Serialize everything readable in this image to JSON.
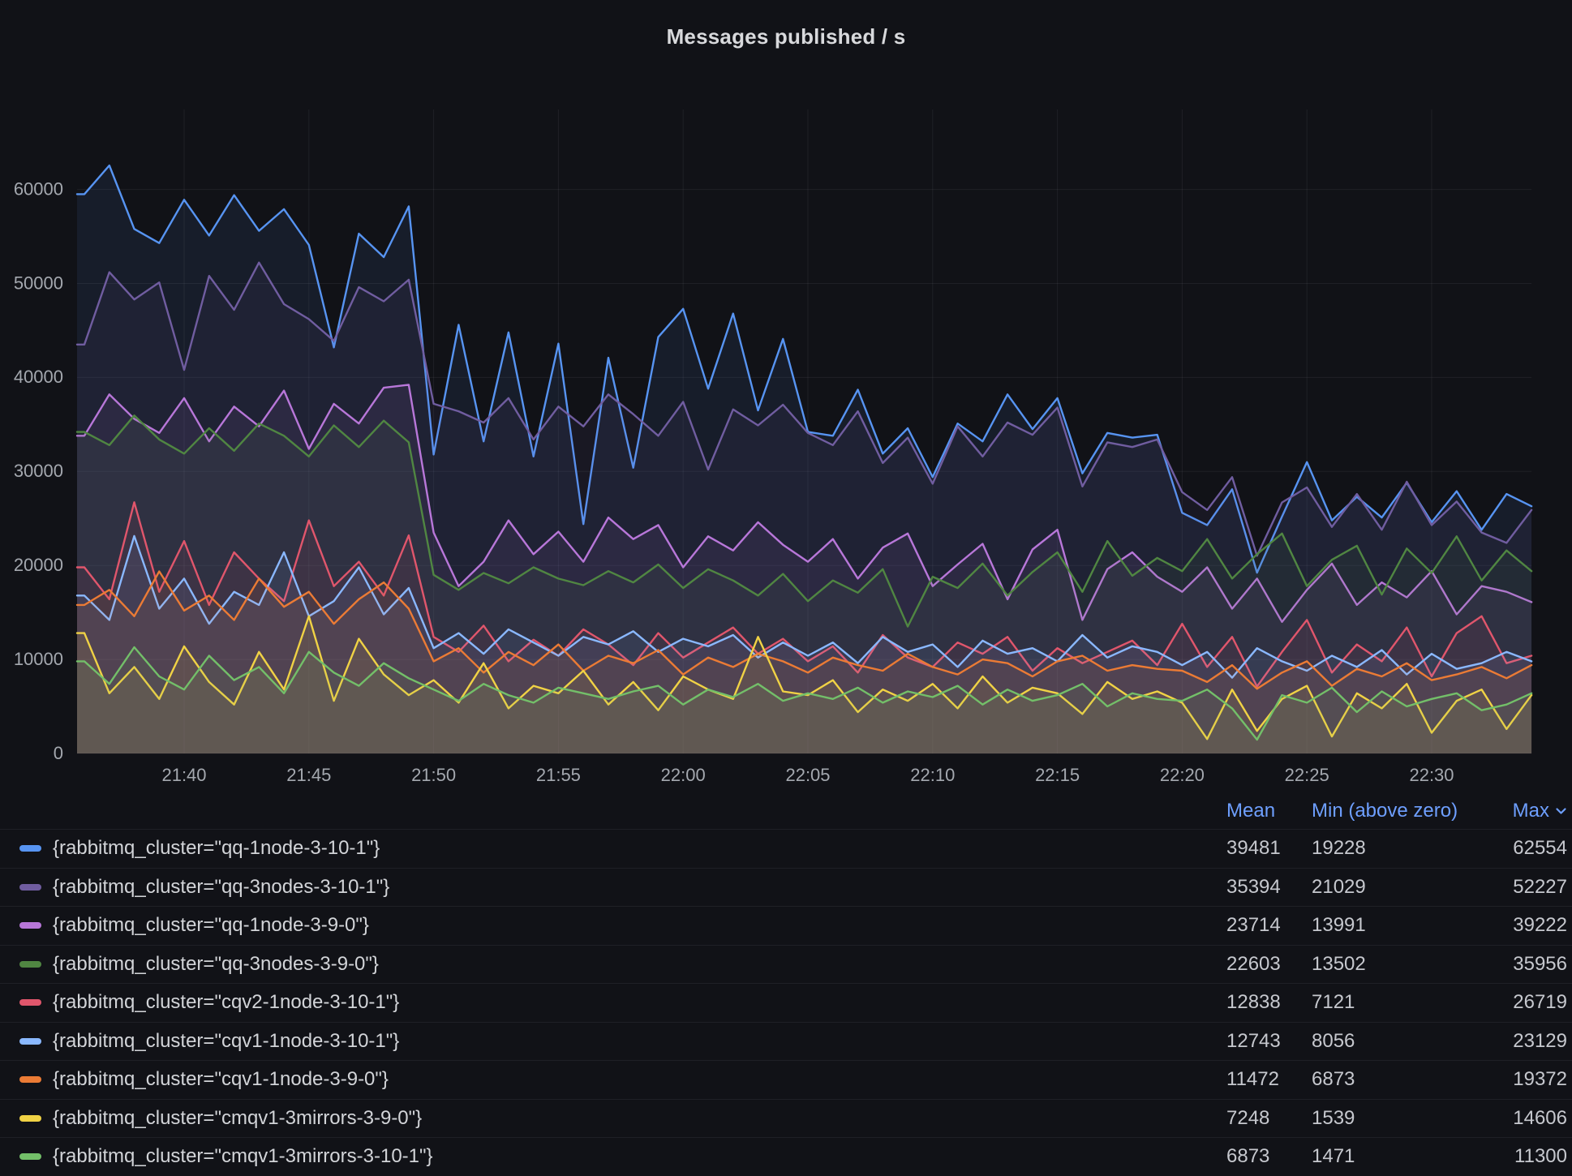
{
  "panel": {
    "title": "Messages published / s"
  },
  "colors": {
    "background": "#111217",
    "grid": "rgba(204,204,220,0.08)",
    "axis_text": "#A4A8AF",
    "header_blue": "#6E9FFF",
    "label_text": "#D2D4D8",
    "value_text": "#C6C8CE",
    "title_text": "#D8D9DC"
  },
  "legend": {
    "columns": [
      "Mean",
      "Min (above zero)",
      "Max"
    ],
    "sort_column": "Max",
    "sort_direction": "desc",
    "rows": [
      {
        "label": "{rabbitmq_cluster=\"qq-1node-3-10-1\"}",
        "color": "#5794F2",
        "mean": 39481,
        "min": 19228,
        "max": 62554
      },
      {
        "label": "{rabbitmq_cluster=\"qq-3nodes-3-10-1\"}",
        "color": "#705DA0",
        "mean": 35394,
        "min": 21029,
        "max": 52227
      },
      {
        "label": "{rabbitmq_cluster=\"qq-1node-3-9-0\"}",
        "color": "#B877D9",
        "mean": 23714,
        "min": 13991,
        "max": 39222
      },
      {
        "label": "{rabbitmq_cluster=\"qq-3nodes-3-9-0\"}",
        "color": "#508642",
        "mean": 22603,
        "min": 13502,
        "max": 35956
      },
      {
        "label": "{rabbitmq_cluster=\"cqv2-1node-3-10-1\"}",
        "color": "#E0566C",
        "mean": 12838,
        "min": 7121,
        "max": 26719
      },
      {
        "label": "{rabbitmq_cluster=\"cqv1-1node-3-10-1\"}",
        "color": "#8AB8FF",
        "mean": 12743,
        "min": 8056,
        "max": 23129
      },
      {
        "label": "{rabbitmq_cluster=\"cqv1-1node-3-9-0\"}",
        "color": "#EB7B35",
        "mean": 11472,
        "min": 6873,
        "max": 19372
      },
      {
        "label": "{rabbitmq_cluster=\"cmqv1-3mirrors-3-9-0\"}",
        "color": "#F0D245",
        "mean": 7248,
        "min": 1539,
        "max": 14606
      },
      {
        "label": "{rabbitmq_cluster=\"cmqv1-3mirrors-3-10-1\"}",
        "color": "#73BF69",
        "mean": 6873,
        "min": 1471,
        "max": 11300
      }
    ]
  },
  "chart_data": {
    "type": "line",
    "title": "Messages published / s",
    "xlabel": "",
    "ylabel": "",
    "grid": true,
    "legend_position": "bottom-table",
    "fill_opacity": 0.085,
    "line_width": 2.4,
    "ylim": [
      0,
      70000
    ],
    "y_ticks": [
      0,
      10000,
      20000,
      30000,
      40000,
      50000,
      60000
    ],
    "x_ticks": [
      "21:40",
      "21:45",
      "21:50",
      "21:55",
      "22:00",
      "22:05",
      "22:10",
      "22:15",
      "22:20",
      "22:25",
      "22:30"
    ],
    "x_tick_minutes": [
      4,
      9,
      14,
      19,
      24,
      29,
      34,
      39,
      44,
      49,
      54
    ],
    "x_times": [
      "21:36",
      "21:37",
      "21:38",
      "21:39",
      "21:40",
      "21:41",
      "21:42",
      "21:43",
      "21:44",
      "21:45",
      "21:46",
      "21:47",
      "21:48",
      "21:49",
      "21:50",
      "21:51",
      "21:52",
      "21:53",
      "21:54",
      "21:55",
      "21:56",
      "21:57",
      "21:58",
      "21:59",
      "22:00",
      "22:01",
      "22:02",
      "22:03",
      "22:04",
      "22:05",
      "22:06",
      "22:07",
      "22:08",
      "22:09",
      "22:10",
      "22:11",
      "22:12",
      "22:13",
      "22:14",
      "22:15",
      "22:16",
      "22:17",
      "22:18",
      "22:19",
      "22:20",
      "22:21",
      "22:22",
      "22:23",
      "22:24",
      "22:25",
      "22:26",
      "22:27",
      "22:28",
      "22:29",
      "22:30",
      "22:31",
      "22:32",
      "22:33",
      "22:34"
    ],
    "series": [
      {
        "name": "{rabbitmq_cluster=\"qq-1node-3-10-1\"}",
        "color": "#5794F2",
        "values": [
          59500,
          62554,
          55800,
          54300,
          58900,
          55100,
          59400,
          55600,
          57900,
          54100,
          43200,
          55300,
          52800,
          58200,
          31800,
          45600,
          33200,
          44800,
          31600,
          43600,
          24400,
          42100,
          30400,
          44300,
          47300,
          38800,
          46800,
          36500,
          44100,
          34200,
          33800,
          38700,
          31900,
          34600,
          29400,
          35100,
          33200,
          38200,
          34500,
          37800,
          29800,
          34100,
          33600,
          33900,
          25600,
          24300,
          28100,
          19228,
          25200,
          31000,
          24800,
          27300,
          25100,
          28800,
          24600,
          27900,
          23800,
          27600,
          26300
        ]
      },
      {
        "name": "{rabbitmq_cluster=\"qq-3nodes-3-10-1\"}",
        "color": "#705DA0",
        "values": [
          43500,
          51200,
          48300,
          50100,
          40800,
          50800,
          47200,
          52227,
          47800,
          46200,
          43900,
          49600,
          48100,
          50400,
          37200,
          36400,
          35200,
          37800,
          33400,
          36900,
          34800,
          38200,
          36100,
          33800,
          37400,
          30200,
          36600,
          34900,
          37100,
          34100,
          32800,
          36400,
          30900,
          33600,
          28700,
          34800,
          31600,
          35200,
          33900,
          36800,
          28400,
          33100,
          32600,
          33400,
          27800,
          25900,
          29400,
          21029,
          26700,
          28300,
          24100,
          27600,
          23800,
          28900,
          24300,
          26800,
          23500,
          22400,
          25900
        ]
      },
      {
        "name": "{rabbitmq_cluster=\"qq-1node-3-9-0\"}",
        "color": "#B877D9",
        "values": [
          33800,
          38200,
          35600,
          34100,
          37800,
          33200,
          36900,
          34800,
          38600,
          32400,
          37200,
          35100,
          38900,
          39222,
          23500,
          17800,
          20400,
          24800,
          21200,
          23600,
          20400,
          25100,
          22800,
          24300,
          19800,
          23100,
          21600,
          24600,
          22200,
          20400,
          22800,
          18600,
          21900,
          23400,
          17800,
          20100,
          22300,
          16400,
          21700,
          23800,
          14200,
          19600,
          21400,
          18800,
          17200,
          19800,
          15400,
          18600,
          13991,
          17400,
          20200,
          15800,
          18200,
          16600,
          19400,
          14800,
          17800,
          17200,
          16100
        ]
      },
      {
        "name": "{rabbitmq_cluster=\"qq-3nodes-3-9-0\"}",
        "color": "#508642",
        "values": [
          34200,
          32800,
          35956,
          33400,
          31900,
          34600,
          32200,
          35100,
          33800,
          31600,
          34900,
          32600,
          35400,
          33100,
          19000,
          17400,
          19200,
          18100,
          19800,
          18600,
          17900,
          19400,
          18200,
          20100,
          17600,
          19600,
          18400,
          16800,
          19100,
          16200,
          18400,
          17100,
          19600,
          13502,
          18800,
          17600,
          20200,
          16800,
          19300,
          21400,
          17200,
          22600,
          18900,
          20800,
          19400,
          22800,
          18600,
          21200,
          23400,
          17800,
          20600,
          22100,
          16900,
          21800,
          19200,
          23100,
          18400,
          21600,
          19400
        ]
      },
      {
        "name": "{rabbitmq_cluster=\"cqv2-1node-3-10-1\"}",
        "color": "#E0566C",
        "values": [
          19800,
          16400,
          26719,
          17200,
          22600,
          15800,
          21400,
          18600,
          16200,
          24800,
          17800,
          20400,
          16800,
          23200,
          12400,
          10800,
          13600,
          9800,
          12100,
          10400,
          13200,
          11600,
          9400,
          12800,
          10200,
          11800,
          13400,
          10600,
          12200,
          9800,
          11400,
          8600,
          12600,
          10200,
          9200,
          11800,
          10600,
          12400,
          8800,
          11200,
          9600,
          10800,
          12000,
          9400,
          13800,
          9200,
          12400,
          7121,
          10800,
          14200,
          8600,
          11600,
          9800,
          13400,
          8200,
          12800,
          14600,
          9600,
          10400
        ]
      },
      {
        "name": "{rabbitmq_cluster=\"cqv1-1node-3-10-1\"}",
        "color": "#8AB8FF",
        "values": [
          16800,
          14200,
          23129,
          15400,
          18600,
          13800,
          17200,
          15800,
          21400,
          14600,
          16200,
          19800,
          14800,
          17600,
          11200,
          12800,
          10600,
          13200,
          11800,
          10400,
          12400,
          11600,
          13000,
          10800,
          12200,
          11400,
          12600,
          10200,
          11800,
          10400,
          11800,
          9600,
          12400,
          10800,
          11600,
          9200,
          12000,
          10600,
          11200,
          9800,
          12600,
          10200,
          11400,
          10800,
          9400,
          10800,
          8056,
          11200,
          9800,
          8800,
          10400,
          9200,
          11000,
          8400,
          10600,
          9000,
          9600,
          10800,
          9800
        ]
      },
      {
        "name": "{rabbitmq_cluster=\"cqv1-1node-3-9-0\"}",
        "color": "#EB7B35",
        "values": [
          15800,
          17400,
          14600,
          19372,
          15200,
          16800,
          14200,
          18600,
          15600,
          17200,
          13800,
          16400,
          18200,
          15400,
          9800,
          11200,
          8600,
          10800,
          9400,
          11600,
          8800,
          10400,
          9600,
          11000,
          8400,
          10200,
          9200,
          10600,
          9800,
          8600,
          10200,
          9400,
          8800,
          10600,
          9200,
          8400,
          10000,
          9600,
          8200,
          9800,
          10400,
          8800,
          9400,
          9000,
          8800,
          7600,
          9400,
          6873,
          8600,
          9800,
          7200,
          9000,
          8200,
          9600,
          7800,
          8400,
          9200,
          8000,
          9400
        ]
      },
      {
        "name": "{rabbitmq_cluster=\"cmqv1-3mirrors-3-9-0\"}",
        "color": "#F0D245",
        "values": [
          12800,
          6400,
          9200,
          5800,
          11400,
          7600,
          5200,
          10800,
          6800,
          14606,
          5600,
          12200,
          8400,
          6200,
          7800,
          5400,
          9600,
          4800,
          7200,
          6400,
          8800,
          5200,
          7600,
          4600,
          8200,
          6800,
          5800,
          12400,
          6600,
          6200,
          7800,
          4400,
          6800,
          5600,
          7400,
          4800,
          8200,
          5400,
          7000,
          6400,
          4200,
          7600,
          5800,
          6600,
          5400,
          1539,
          6800,
          2400,
          5800,
          7200,
          1800,
          6400,
          4800,
          7400,
          2200,
          5600,
          6800,
          2600,
          6200
        ]
      },
      {
        "name": "{rabbitmq_cluster=\"cmqv1-3mirrors-3-10-1\"}",
        "color": "#73BF69",
        "values": [
          9800,
          7400,
          11300,
          8200,
          6800,
          10400,
          7800,
          9200,
          6400,
          10800,
          8600,
          7200,
          9600,
          8000,
          6800,
          5600,
          7400,
          6200,
          5400,
          7000,
          6400,
          5800,
          6600,
          7200,
          5200,
          6800,
          6000,
          7400,
          5600,
          6400,
          5800,
          7000,
          5400,
          6600,
          6000,
          7200,
          5200,
          6800,
          5600,
          6200,
          7400,
          5000,
          6400,
          5800,
          5600,
          6800,
          4800,
          1471,
          6200,
          5400,
          7000,
          4400,
          6600,
          5000,
          5800,
          6400,
          4600,
          5200,
          6400
        ]
      }
    ]
  }
}
